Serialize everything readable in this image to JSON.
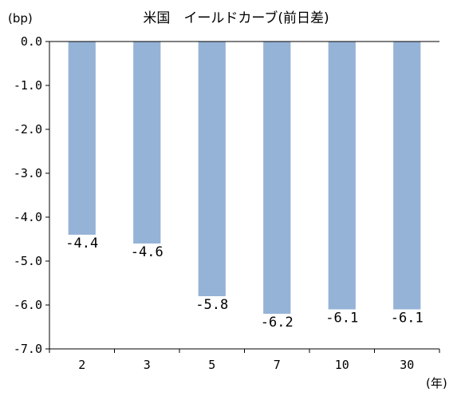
{
  "chart_data": {
    "type": "bar",
    "title": "米国　イールドカーブ(前日差)",
    "ylabel": "(bp)",
    "xlabel": "(年)",
    "categories": [
      "2",
      "3",
      "5",
      "7",
      "10",
      "30"
    ],
    "values": [
      -4.4,
      -4.6,
      -5.8,
      -6.2,
      -6.1,
      -6.1
    ],
    "data_labels": [
      "-4.4",
      "-4.6",
      "-5.8",
      "-6.2",
      "-6.1",
      "-6.1"
    ],
    "ylim": [
      -7.0,
      0.0
    ],
    "yticks": [
      0.0,
      -1.0,
      -2.0,
      -3.0,
      -4.0,
      -5.0,
      -6.0,
      -7.0
    ],
    "ytick_labels": [
      "0.0",
      "-1.0",
      "-2.0",
      "-3.0",
      "-4.0",
      "-5.0",
      "-6.0",
      "-7.0"
    ],
    "grid": false,
    "bar_color": "#95b3d7",
    "axis_color": "#000000"
  }
}
